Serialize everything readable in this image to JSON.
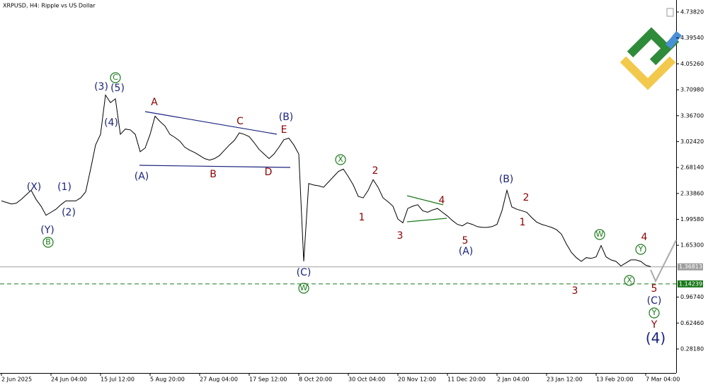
{
  "chart_data": {
    "type": "line",
    "title": "XRPUSD, H4:  Ripple vs US Dollar",
    "color": "#000000",
    "categories": [
      "2 Jun 2025",
      null,
      null,
      null,
      null,
      null,
      null,
      null,
      null,
      null,
      "24 Jun 04:00",
      null,
      null,
      null,
      null,
      null,
      null,
      null,
      null,
      null,
      "15 Jul 12:00",
      null,
      null,
      null,
      null,
      null,
      null,
      null,
      null,
      null,
      "5 Aug 20:00",
      null,
      null,
      null,
      null,
      null,
      null,
      null,
      null,
      null,
      "27 Aug 04:00",
      null,
      null,
      null,
      null,
      null,
      null,
      null,
      null,
      null,
      "17 Sep 12:00",
      null,
      null,
      null,
      null,
      null,
      null,
      null,
      null,
      null,
      "8 Oct 20:00",
      null,
      null,
      null,
      null,
      null,
      null,
      null,
      null,
      null,
      "30 Oct 04:00",
      null,
      null,
      null,
      null,
      null,
      null,
      null,
      null,
      null,
      "20 Nov 12:00",
      null,
      null,
      null,
      null,
      null,
      null,
      null,
      null,
      null,
      "11 Dec 20:00",
      null,
      null,
      null,
      null,
      null,
      null,
      null,
      null,
      null,
      "2 Jan 04:00",
      null,
      null,
      null,
      null,
      null,
      null,
      null,
      null,
      null,
      "23 Jan 12:00",
      null,
      null,
      null,
      null,
      null,
      null,
      null,
      null,
      null,
      "13 Feb 20:00",
      null,
      null,
      null,
      null,
      null,
      null,
      null,
      null,
      null,
      "7 Mar 04:00",
      null
    ],
    "values": [
      2.24,
      2.22,
      2.2,
      2.21,
      2.26,
      2.32,
      2.38,
      2.26,
      2.17,
      2.05,
      2.09,
      2.13,
      2.19,
      2.24,
      2.24,
      2.24,
      2.28,
      2.36,
      2.66,
      2.98,
      3.12,
      3.64,
      3.54,
      3.59,
      3.12,
      3.19,
      3.18,
      3.12,
      2.89,
      2.94,
      3.12,
      3.36,
      3.29,
      3.23,
      3.12,
      3.08,
      3.03,
      2.95,
      2.91,
      2.88,
      2.84,
      2.8,
      2.78,
      2.8,
      2.84,
      2.91,
      2.98,
      3.04,
      3.14,
      3.12,
      3.09,
      3.01,
      2.92,
      2.86,
      2.8,
      2.86,
      2.95,
      3.05,
      3.07,
      2.98,
      2.86,
      1.44,
      2.47,
      2.45,
      2.44,
      2.42,
      2.49,
      2.56,
      2.63,
      2.66,
      2.56,
      2.45,
      2.3,
      2.28,
      2.38,
      2.52,
      2.42,
      2.28,
      2.23,
      2.17,
      2.0,
      1.95,
      2.14,
      2.17,
      2.19,
      2.11,
      2.09,
      2.12,
      2.14,
      2.09,
      2.04,
      1.98,
      1.93,
      1.91,
      1.95,
      1.93,
      1.9,
      1.89,
      1.89,
      1.9,
      1.93,
      2.11,
      2.38,
      2.16,
      2.13,
      2.11,
      2.09,
      2.02,
      1.96,
      1.93,
      1.91,
      1.89,
      1.86,
      1.8,
      1.67,
      1.56,
      1.49,
      1.44,
      1.49,
      1.48,
      1.5,
      1.65,
      1.5,
      1.46,
      1.44,
      1.38,
      1.42,
      1.46,
      1.46,
      1.44,
      1.39,
      1.37
    ],
    "ylim": [
      -0.0358,
      4.897
    ],
    "yticks": [
      {
        "value": 0.2818,
        "label": "0.28180"
      },
      {
        "value": 0.6246,
        "label": "0.62460"
      },
      {
        "value": 0.9674,
        "label": "0.96740"
      },
      {
        "value": 1.653,
        "label": "1.65300"
      },
      {
        "value": 1.9958,
        "label": "1.99580"
      },
      {
        "value": 2.3386,
        "label": "2.33860"
      },
      {
        "value": 2.6814,
        "label": "2.68140"
      },
      {
        "value": 3.0242,
        "label": "3.02420"
      },
      {
        "value": 3.367,
        "label": "3.36700"
      },
      {
        "value": 3.7098,
        "label": "3.70980"
      },
      {
        "value": 4.0526,
        "label": "4.05260"
      },
      {
        "value": 4.3954,
        "label": "4.39540"
      },
      {
        "value": 4.7382,
        "label": "4.73820"
      }
    ],
    "price_lines": [
      1.36813,
      1.14239
    ],
    "grid": false
  },
  "wave_labels": [
    "(X)",
    "(Y)",
    "B",
    "(1)",
    "(2)",
    "(3)",
    "(5)",
    "C",
    "(4)",
    "A",
    "(A)",
    "B",
    "C",
    "D",
    "E",
    "(B)",
    "(C)",
    "W",
    "X",
    "2",
    "1",
    "3",
    "4",
    "5",
    "(A)",
    "(B)",
    "2",
    "1",
    "W",
    "4",
    "Y",
    "X",
    "3",
    "5",
    "(C)",
    "Y",
    "Y",
    "(4)"
  ]
}
